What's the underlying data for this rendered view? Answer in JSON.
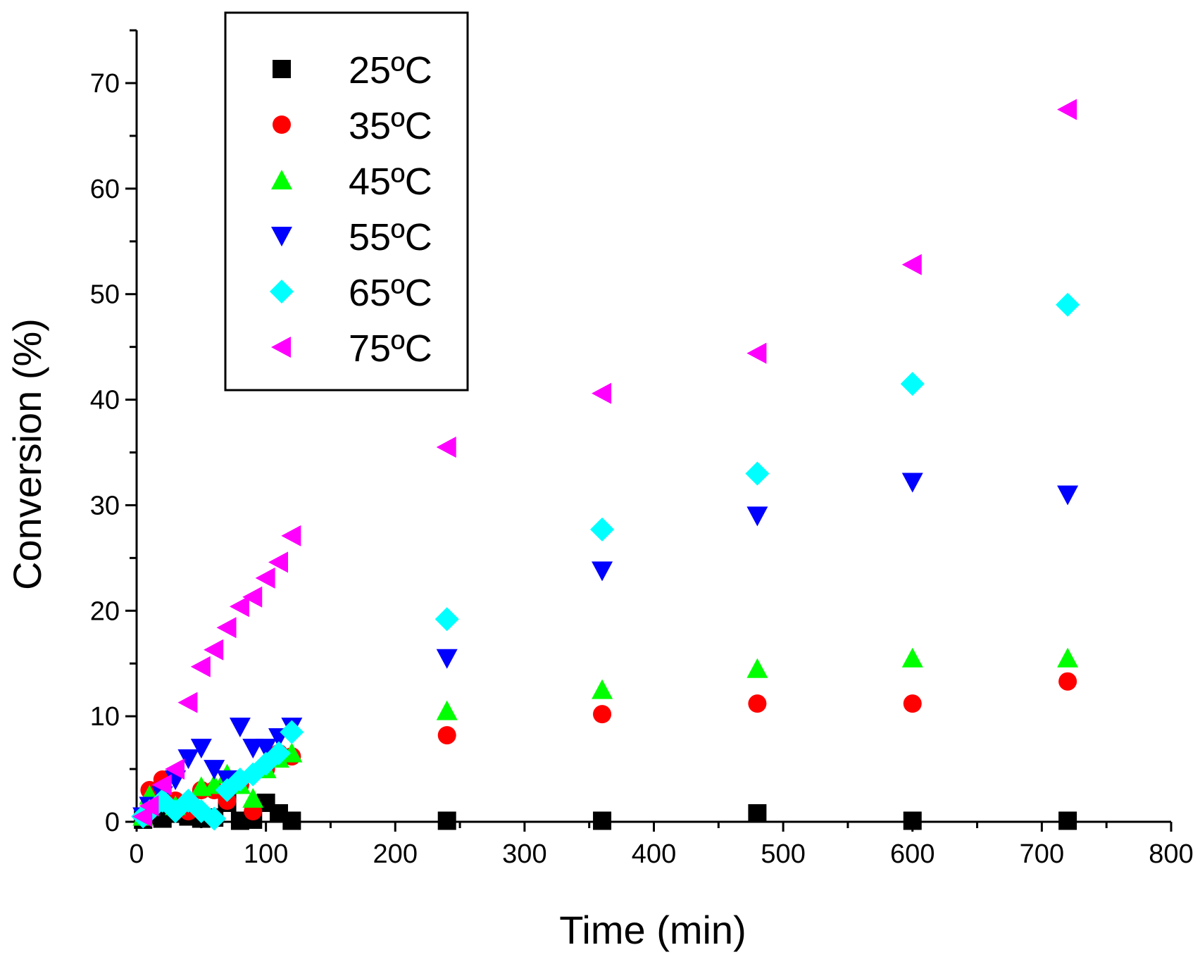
{
  "chart_data": {
    "type": "scatter",
    "title": "",
    "xlabel": "Time (min)",
    "ylabel": "Conversion (%)",
    "xlim": [
      0,
      800
    ],
    "ylim": [
      0,
      75
    ],
    "xticks": [
      "0",
      "100",
      "200",
      "300",
      "400",
      "500",
      "600",
      "700",
      "800"
    ],
    "yticks": [
      "0",
      "10",
      "20",
      "30",
      "40",
      "50",
      "60",
      "70"
    ],
    "grid": false,
    "legend_position": "top-left",
    "series": [
      {
        "name": "25ºC",
        "marker": "square",
        "color": "#000000",
        "points": [
          [
            5,
            0.2
          ],
          [
            10,
            0.5
          ],
          [
            20,
            0.3
          ],
          [
            30,
            0.8
          ],
          [
            40,
            0.5
          ],
          [
            50,
            0.3
          ],
          [
            60,
            0.4
          ],
          [
            70,
            1.8
          ],
          [
            80,
            0.1
          ],
          [
            90,
            0.2
          ],
          [
            100,
            1.8
          ],
          [
            110,
            0.8
          ],
          [
            120,
            0.1
          ],
          [
            240,
            0.1
          ],
          [
            360,
            0.1
          ],
          [
            480,
            0.8
          ],
          [
            600,
            0.1
          ],
          [
            720,
            0.1
          ]
        ]
      },
      {
        "name": "35ºC",
        "marker": "circle",
        "color": "#ff0000",
        "points": [
          [
            5,
            0.5
          ],
          [
            10,
            3.0
          ],
          [
            20,
            4.0
          ],
          [
            30,
            2.0
          ],
          [
            40,
            1.0
          ],
          [
            50,
            3.0
          ],
          [
            60,
            3.0
          ],
          [
            70,
            2.0
          ],
          [
            80,
            3.5
          ],
          [
            90,
            1.0
          ],
          [
            100,
            5.0
          ],
          [
            110,
            6.5
          ],
          [
            120,
            6.2
          ],
          [
            240,
            8.2
          ],
          [
            360,
            10.2
          ],
          [
            480,
            11.2
          ],
          [
            600,
            11.2
          ],
          [
            720,
            13.3
          ]
        ]
      },
      {
        "name": "45ºC",
        "marker": "triangle-up",
        "color": "#00ff00",
        "points": [
          [
            5,
            0.5
          ],
          [
            10,
            2.5
          ],
          [
            20,
            2.0
          ],
          [
            30,
            1.5
          ],
          [
            40,
            2.0
          ],
          [
            50,
            3.3
          ],
          [
            60,
            3.5
          ],
          [
            70,
            4.5
          ],
          [
            80,
            3.5
          ],
          [
            90,
            2.2
          ],
          [
            100,
            5.0
          ],
          [
            110,
            6.0
          ],
          [
            120,
            6.5
          ],
          [
            240,
            10.5
          ],
          [
            360,
            12.5
          ],
          [
            480,
            14.5
          ],
          [
            600,
            15.5
          ],
          [
            720,
            15.5
          ]
        ]
      },
      {
        "name": "55ºC",
        "marker": "triangle-down",
        "color": "#0000ff",
        "points": [
          [
            5,
            0.5
          ],
          [
            10,
            1.5
          ],
          [
            20,
            2.5
          ],
          [
            30,
            4.0
          ],
          [
            40,
            6.0
          ],
          [
            50,
            7.0
          ],
          [
            60,
            5.0
          ],
          [
            70,
            4.0
          ],
          [
            80,
            9.0
          ],
          [
            90,
            7.0
          ],
          [
            100,
            7.0
          ],
          [
            110,
            8.0
          ],
          [
            120,
            9.0
          ],
          [
            240,
            15.5
          ],
          [
            360,
            23.8
          ],
          [
            480,
            29.0
          ],
          [
            600,
            32.2
          ],
          [
            720,
            31.0
          ]
        ]
      },
      {
        "name": "65ºC",
        "marker": "diamond",
        "color": "#00ffff",
        "points": [
          [
            5,
            0.5
          ],
          [
            10,
            1.0
          ],
          [
            20,
            2.0
          ],
          [
            30,
            1.0
          ],
          [
            40,
            2.0
          ],
          [
            50,
            1.0
          ],
          [
            60,
            0.3
          ],
          [
            70,
            3.0
          ],
          [
            80,
            4.0
          ],
          [
            90,
            4.5
          ],
          [
            100,
            5.5
          ],
          [
            110,
            6.5
          ],
          [
            120,
            8.5
          ],
          [
            240,
            19.2
          ],
          [
            360,
            27.7
          ],
          [
            480,
            33.0
          ],
          [
            600,
            41.5
          ],
          [
            720,
            49.0
          ]
        ]
      },
      {
        "name": "75ºC",
        "marker": "triangle-left",
        "color": "#ff00ff",
        "points": [
          [
            5,
            0.5
          ],
          [
            10,
            1.5
          ],
          [
            20,
            3.5
          ],
          [
            30,
            5.0
          ],
          [
            40,
            11.3
          ],
          [
            50,
            14.7
          ],
          [
            60,
            16.3
          ],
          [
            70,
            18.4
          ],
          [
            80,
            20.4
          ],
          [
            90,
            21.3
          ],
          [
            100,
            23.1
          ],
          [
            110,
            24.6
          ],
          [
            120,
            27.1
          ],
          [
            240,
            35.5
          ],
          [
            360,
            40.6
          ],
          [
            480,
            44.4
          ],
          [
            600,
            52.8
          ],
          [
            720,
            67.5
          ]
        ]
      }
    ]
  }
}
